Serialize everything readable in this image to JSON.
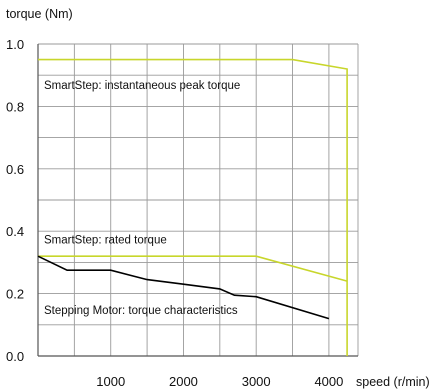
{
  "chart_data": {
    "type": "line",
    "title": "",
    "ylabel": "torque (Nm)",
    "xlabel": "speed (r/min)",
    "xlim": [
      0,
      4400
    ],
    "ylim": [
      0,
      1.0
    ],
    "x_ticks": [
      1000,
      2000,
      3000,
      4000
    ],
    "x_tick_labels": [
      "1000",
      "2000",
      "3000",
      "4000"
    ],
    "y_ticks": [
      0,
      0.2,
      0.4,
      0.6,
      0.8,
      1.0
    ],
    "y_tick_labels": [
      "0.0",
      "0.2",
      "0.4",
      "0.6",
      "0.8",
      "1.0"
    ],
    "grid": true,
    "series": [
      {
        "name": "SmartStep: instantaneous peak torque",
        "color": "#c8d62b",
        "x": [
          0,
          3500,
          4250,
          4250
        ],
        "y": [
          0.95,
          0.95,
          0.92,
          0
        ]
      },
      {
        "name": "SmartStep: rated torque",
        "color": "#c8d62b",
        "x": [
          0,
          3000,
          4250
        ],
        "y": [
          0.32,
          0.32,
          0.24
        ]
      },
      {
        "name": "Stepping Motor: torque characteristics",
        "color": "#000000",
        "x": [
          0,
          400,
          1000,
          1500,
          2000,
          2500,
          2700,
          3000,
          4000
        ],
        "y": [
          0.32,
          0.275,
          0.275,
          0.245,
          0.23,
          0.215,
          0.195,
          0.19,
          0.12
        ]
      }
    ],
    "annotations": [
      {
        "text": "SmartStep: instantaneous peak torque",
        "x": 100,
        "y": 0.855
      },
      {
        "text": "SmartStep: rated torque",
        "x": 100,
        "y": 0.36
      },
      {
        "text": "Stepping Motor: torque characteristics",
        "x": 100,
        "y": 0.135
      }
    ]
  }
}
